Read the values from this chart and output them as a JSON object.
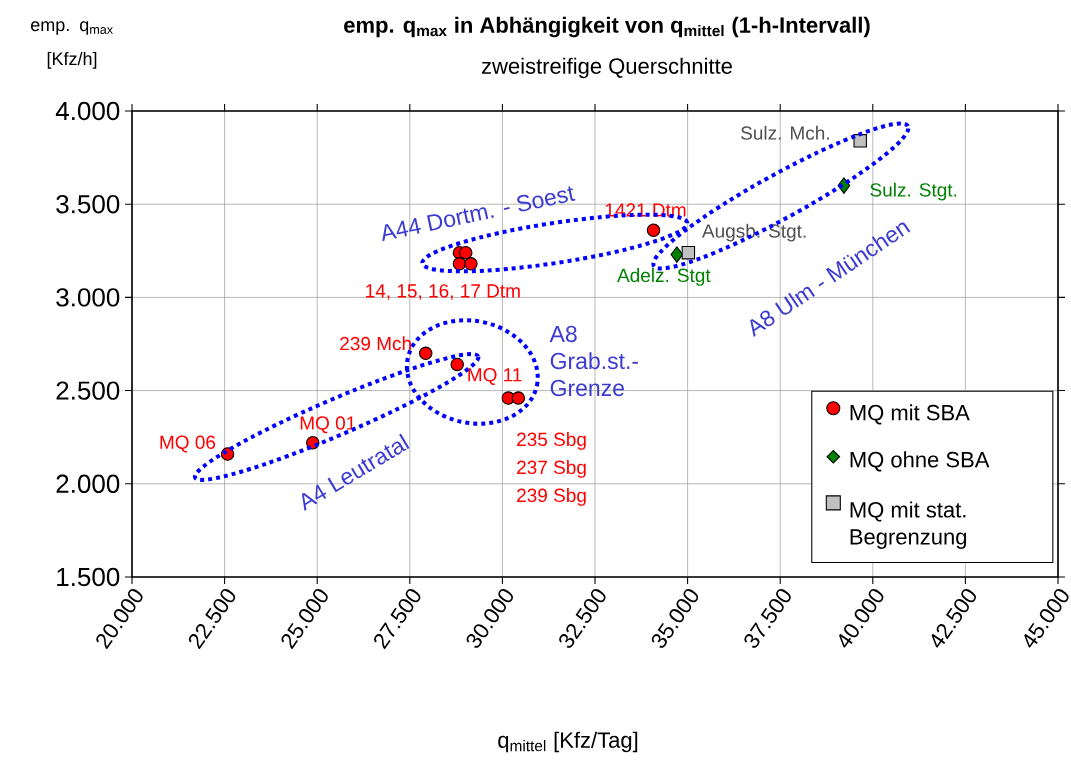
{
  "chart_data": {
    "type": "scatter",
    "title": "emp. q$_{max}$ in Abhängigkeit von q$_{mittel}$ (1-h-Intervall)",
    "subtitle": "zweistreifige Querschnitte",
    "xlabel": "q$_{mittel}$ [Kfz/Tag]",
    "ylabel": "emp. q$_{max}$ [Kfz/h]",
    "xlim": [
      20000,
      45000
    ],
    "ylim": [
      1500,
      4000
    ],
    "xticks": [
      {
        "value": 20000,
        "label": "20.000"
      },
      {
        "value": 22500,
        "label": "22.500"
      },
      {
        "value": 25000,
        "label": "25.000"
      },
      {
        "value": 27500,
        "label": "27.500"
      },
      {
        "value": 30000,
        "label": "30.000"
      },
      {
        "value": 32500,
        "label": "32.500"
      },
      {
        "value": 35000,
        "label": "35.000"
      },
      {
        "value": 37500,
        "label": "37.500"
      },
      {
        "value": 40000,
        "label": "40.000"
      },
      {
        "value": 42500,
        "label": "42.500"
      },
      {
        "value": 45000,
        "label": "45.000"
      }
    ],
    "yticks": [
      {
        "value": 1500,
        "label": "1.500"
      },
      {
        "value": 2000,
        "label": "2.000"
      },
      {
        "value": 2500,
        "label": "2.500"
      },
      {
        "value": 3000,
        "label": "3.000"
      },
      {
        "value": 3500,
        "label": "3.500"
      },
      {
        "value": 4000,
        "label": "4.000"
      }
    ],
    "grid": true,
    "legend": "bottom right",
    "series": [
      {
        "name": "MQ mit SBA",
        "color": "#ff0000",
        "marker": "circle",
        "x": [
          22580,
          24880,
          27930,
          28780,
          30160,
          30430,
          28840,
          29010,
          28840,
          29150,
          34080
        ],
        "values": [
          2160,
          2220,
          2700,
          2640,
          2460,
          2460,
          3240,
          3240,
          3180,
          3180,
          3360
        ]
      },
      {
        "name": "MQ ohne SBA",
        "color": "#008000",
        "marker": "diamond",
        "x": [
          34710,
          39220
        ],
        "values": [
          3230,
          3600
        ]
      },
      {
        "name": "MQ mit stat. Begrenzung",
        "color": "#c0c0c0",
        "marker": "square",
        "x": [
          35020,
          39660
        ],
        "values": [
          3240,
          3840
        ]
      }
    ],
    "annotations": [
      {
        "text": "MQ 06",
        "x": 22580,
        "y": 2160
      },
      {
        "text": "MQ 01",
        "x": 24880,
        "y": 2220
      },
      {
        "text": "239 Mch",
        "x": 27930,
        "y": 2700
      },
      {
        "text": "MQ 11",
        "x": 28780,
        "y": 2640
      },
      {
        "text": "1421 Dtm",
        "x": 34080,
        "y": 3360
      },
      {
        "text": "Adelz. Stgt",
        "x": 34710,
        "y": 3230
      },
      {
        "text": "Sulz. Stgt.",
        "x": 39220,
        "y": 3600
      },
      {
        "text": "Augsb. Stgt.",
        "x": 35020,
        "y": 3240
      },
      {
        "text": "Sulz. Mch.",
        "x": 39660,
        "y": 3840
      },
      "14, 15, 16, 17 Dtm",
      "235 Sbg",
      "237 Sbg",
      "239 Sbg",
      "A44 Dortm. - Soest",
      "A4 Leutratal",
      "A8 Grab.st.- Grenze",
      "A8 Ulm - München"
    ]
  }
}
